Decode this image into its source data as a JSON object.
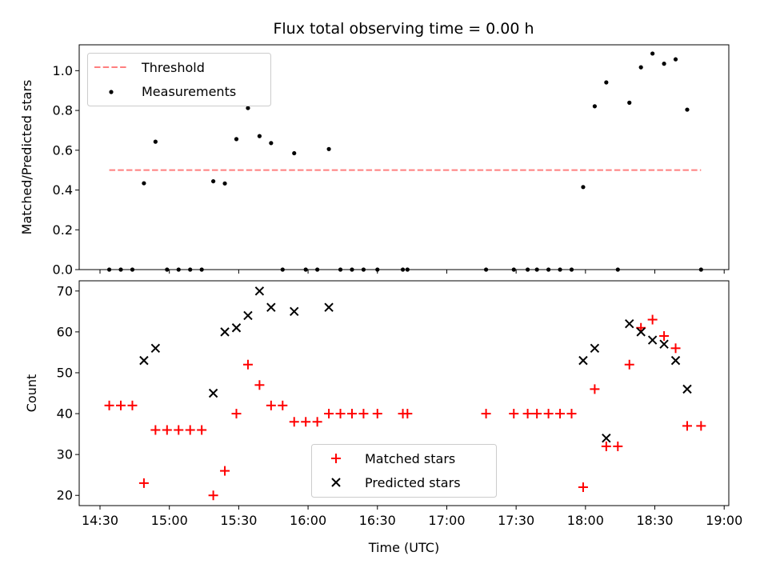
{
  "chart_data": [
    {
      "type": "scatter",
      "title": "Flux total observing time = 0.00 h",
      "xlabel": "",
      "ylabel": "Matched/Predicted stars",
      "xlim": [
        "14:21",
        "19:02"
      ],
      "ylim": [
        0,
        1.13
      ],
      "yticks": [
        "0.0",
        "0.2",
        "0.4",
        "0.6",
        "0.8",
        "1.0"
      ],
      "legend_position": "upper-left",
      "series": [
        {
          "name": "Threshold",
          "kind": "dashed-line",
          "color": "#ff7f7f",
          "x": [
            "14:34",
            "18:50"
          ],
          "y": [
            0.5,
            0.5
          ]
        },
        {
          "name": "Measurements",
          "kind": "points",
          "color": "#000000",
          "points": [
            [
              "14:34",
              0.0
            ],
            [
              "14:39",
              0.0
            ],
            [
              "14:44",
              0.0
            ],
            [
              "14:49",
              0.434
            ],
            [
              "14:54",
              0.643
            ],
            [
              "14:59",
              0.0
            ],
            [
              "15:04",
              0.0
            ],
            [
              "15:09",
              0.0
            ],
            [
              "15:14",
              0.0
            ],
            [
              "15:19",
              0.444
            ],
            [
              "15:24",
              0.433
            ],
            [
              "15:29",
              0.656
            ],
            [
              "15:34",
              0.812
            ],
            [
              "15:39",
              0.671
            ],
            [
              "15:44",
              0.636
            ],
            [
              "15:49",
              0.0
            ],
            [
              "15:54",
              0.585
            ],
            [
              "15:59",
              0.0
            ],
            [
              "16:04",
              0.0
            ],
            [
              "16:09",
              0.606
            ],
            [
              "16:14",
              0.0
            ],
            [
              "16:19",
              0.0
            ],
            [
              "16:24",
              0.0
            ],
            [
              "16:30",
              0.0
            ],
            [
              "16:41",
              0.0
            ],
            [
              "16:43",
              0.0
            ],
            [
              "17:17",
              0.0
            ],
            [
              "17:29",
              0.0
            ],
            [
              "17:35",
              0.0
            ],
            [
              "17:39",
              0.0
            ],
            [
              "17:44",
              0.0
            ],
            [
              "17:49",
              0.0
            ],
            [
              "17:54",
              0.0
            ],
            [
              "17:59",
              0.415
            ],
            [
              "18:04",
              0.821
            ],
            [
              "18:09",
              0.941
            ],
            [
              "18:14",
              0.0
            ],
            [
              "18:19",
              0.839
            ],
            [
              "18:24",
              1.017
            ],
            [
              "18:29",
              1.086
            ],
            [
              "18:34",
              1.035
            ],
            [
              "18:39",
              1.057
            ],
            [
              "18:44",
              0.804
            ],
            [
              "18:50",
              0.0
            ]
          ]
        }
      ]
    },
    {
      "type": "scatter",
      "title": "",
      "xlabel": "Time (UTC)",
      "ylabel": "Count",
      "xlim": [
        "14:21",
        "19:02"
      ],
      "ylim": [
        17.5,
        72.5
      ],
      "xticks": [
        "14:30",
        "15:00",
        "15:30",
        "16:00",
        "16:30",
        "17:00",
        "17:30",
        "18:00",
        "18:30",
        "19:00"
      ],
      "yticks": [
        "20",
        "30",
        "40",
        "50",
        "60",
        "70"
      ],
      "legend_position": "lower-center",
      "series": [
        {
          "name": "Matched stars",
          "marker": "+",
          "color": "#ff0000",
          "points": [
            [
              "14:34",
              42
            ],
            [
              "14:39",
              42
            ],
            [
              "14:44",
              42
            ],
            [
              "14:49",
              23
            ],
            [
              "14:54",
              36
            ],
            [
              "14:59",
              36
            ],
            [
              "15:04",
              36
            ],
            [
              "15:09",
              36
            ],
            [
              "15:14",
              36
            ],
            [
              "15:19",
              20
            ],
            [
              "15:24",
              26
            ],
            [
              "15:29",
              40
            ],
            [
              "15:34",
              52
            ],
            [
              "15:39",
              47
            ],
            [
              "15:44",
              42
            ],
            [
              "15:49",
              42
            ],
            [
              "15:54",
              38
            ],
            [
              "15:59",
              38
            ],
            [
              "16:04",
              38
            ],
            [
              "16:09",
              40
            ],
            [
              "16:14",
              40
            ],
            [
              "16:19",
              40
            ],
            [
              "16:24",
              40
            ],
            [
              "16:30",
              40
            ],
            [
              "16:41",
              40
            ],
            [
              "16:43",
              40
            ],
            [
              "17:17",
              40
            ],
            [
              "17:29",
              40
            ],
            [
              "17:35",
              40
            ],
            [
              "17:39",
              40
            ],
            [
              "17:44",
              40
            ],
            [
              "17:49",
              40
            ],
            [
              "17:54",
              40
            ],
            [
              "17:59",
              22
            ],
            [
              "18:04",
              46
            ],
            [
              "18:09",
              32
            ],
            [
              "18:14",
              32
            ],
            [
              "18:19",
              52
            ],
            [
              "18:24",
              61
            ],
            [
              "18:29",
              63
            ],
            [
              "18:34",
              59
            ],
            [
              "18:39",
              56
            ],
            [
              "18:44",
              37
            ],
            [
              "18:50",
              37
            ]
          ]
        },
        {
          "name": "Predicted stars",
          "marker": "x",
          "color": "#000000",
          "points": [
            [
              "14:49",
              53
            ],
            [
              "14:54",
              56
            ],
            [
              "15:19",
              45
            ],
            [
              "15:24",
              60
            ],
            [
              "15:29",
              61
            ],
            [
              "15:34",
              64
            ],
            [
              "15:39",
              70
            ],
            [
              "15:44",
              66
            ],
            [
              "15:54",
              65
            ],
            [
              "16:09",
              66
            ],
            [
              "17:59",
              53
            ],
            [
              "18:04",
              56
            ],
            [
              "18:09",
              34
            ],
            [
              "18:19",
              62
            ],
            [
              "18:24",
              60
            ],
            [
              "18:29",
              58
            ],
            [
              "18:34",
              57
            ],
            [
              "18:39",
              53
            ],
            [
              "18:44",
              46
            ]
          ]
        }
      ]
    }
  ]
}
